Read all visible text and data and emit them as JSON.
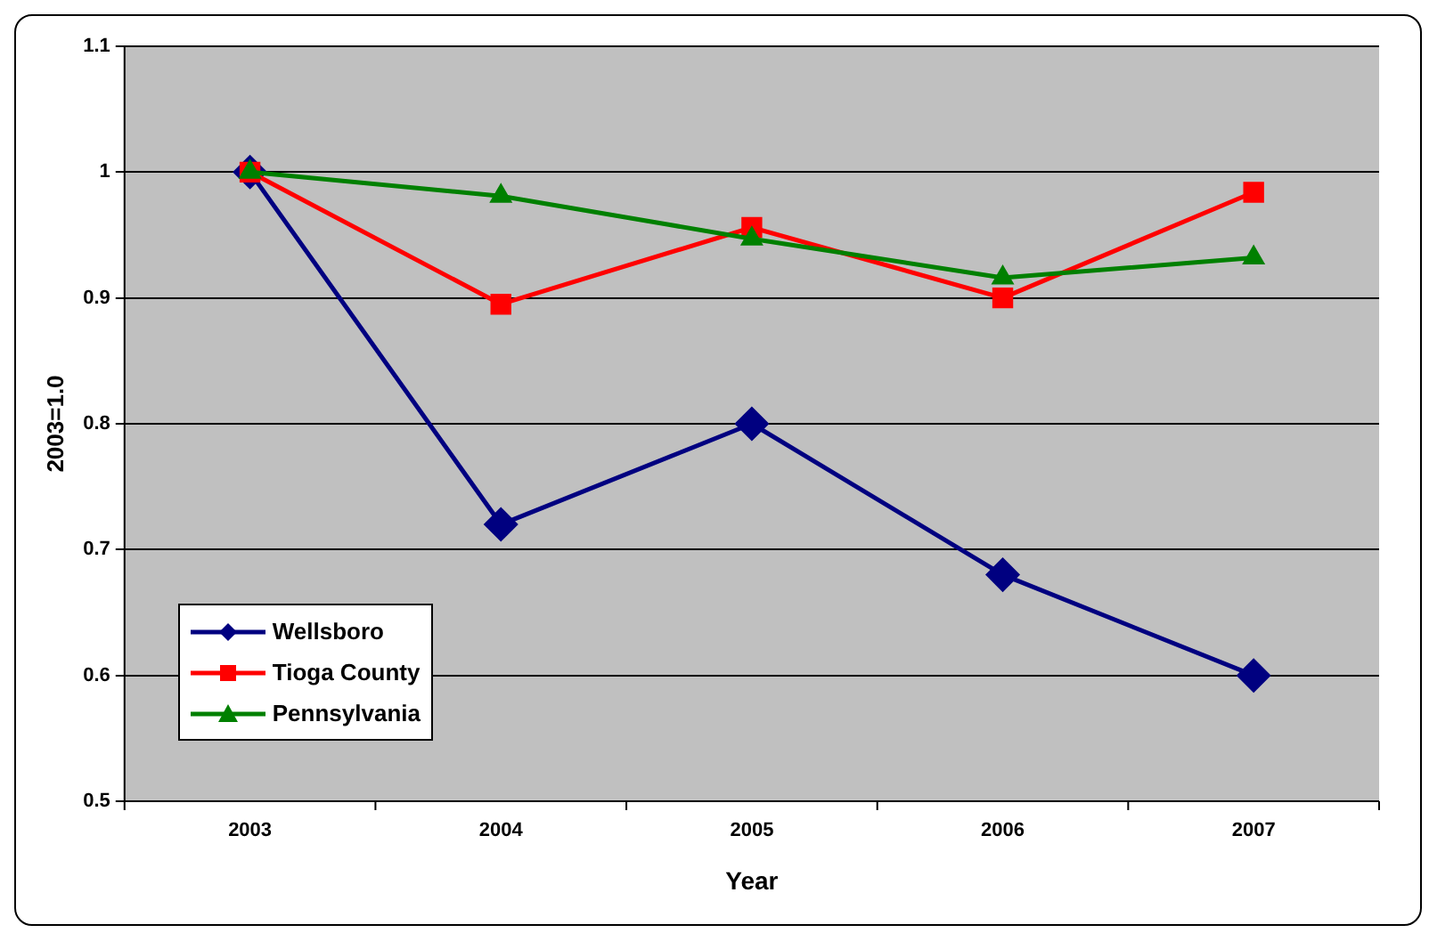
{
  "chart_data": {
    "type": "line",
    "xlabel": "Year",
    "ylabel": "2003=1.0",
    "categories": [
      "2003",
      "2004",
      "2005",
      "2006",
      "2007"
    ],
    "series": [
      {
        "name": "Wellsboro",
        "color": "#000080",
        "marker": "diamond",
        "values": [
          1.0,
          0.72,
          0.8,
          0.68,
          0.6
        ]
      },
      {
        "name": "Tioga County",
        "color": "#ff0000",
        "marker": "square",
        "values": [
          1.0,
          0.895,
          0.956,
          0.9,
          0.984
        ]
      },
      {
        "name": "Pennsylvania",
        "color": "#008000",
        "marker": "triangle",
        "values": [
          1.0,
          0.981,
          0.947,
          0.916,
          0.932
        ]
      }
    ],
    "ylim": [
      0.5,
      1.1
    ],
    "yticks": [
      0.5,
      0.6,
      0.7,
      0.8,
      0.9,
      1,
      1.1
    ],
    "grid": "y",
    "legend": "bottom left"
  }
}
